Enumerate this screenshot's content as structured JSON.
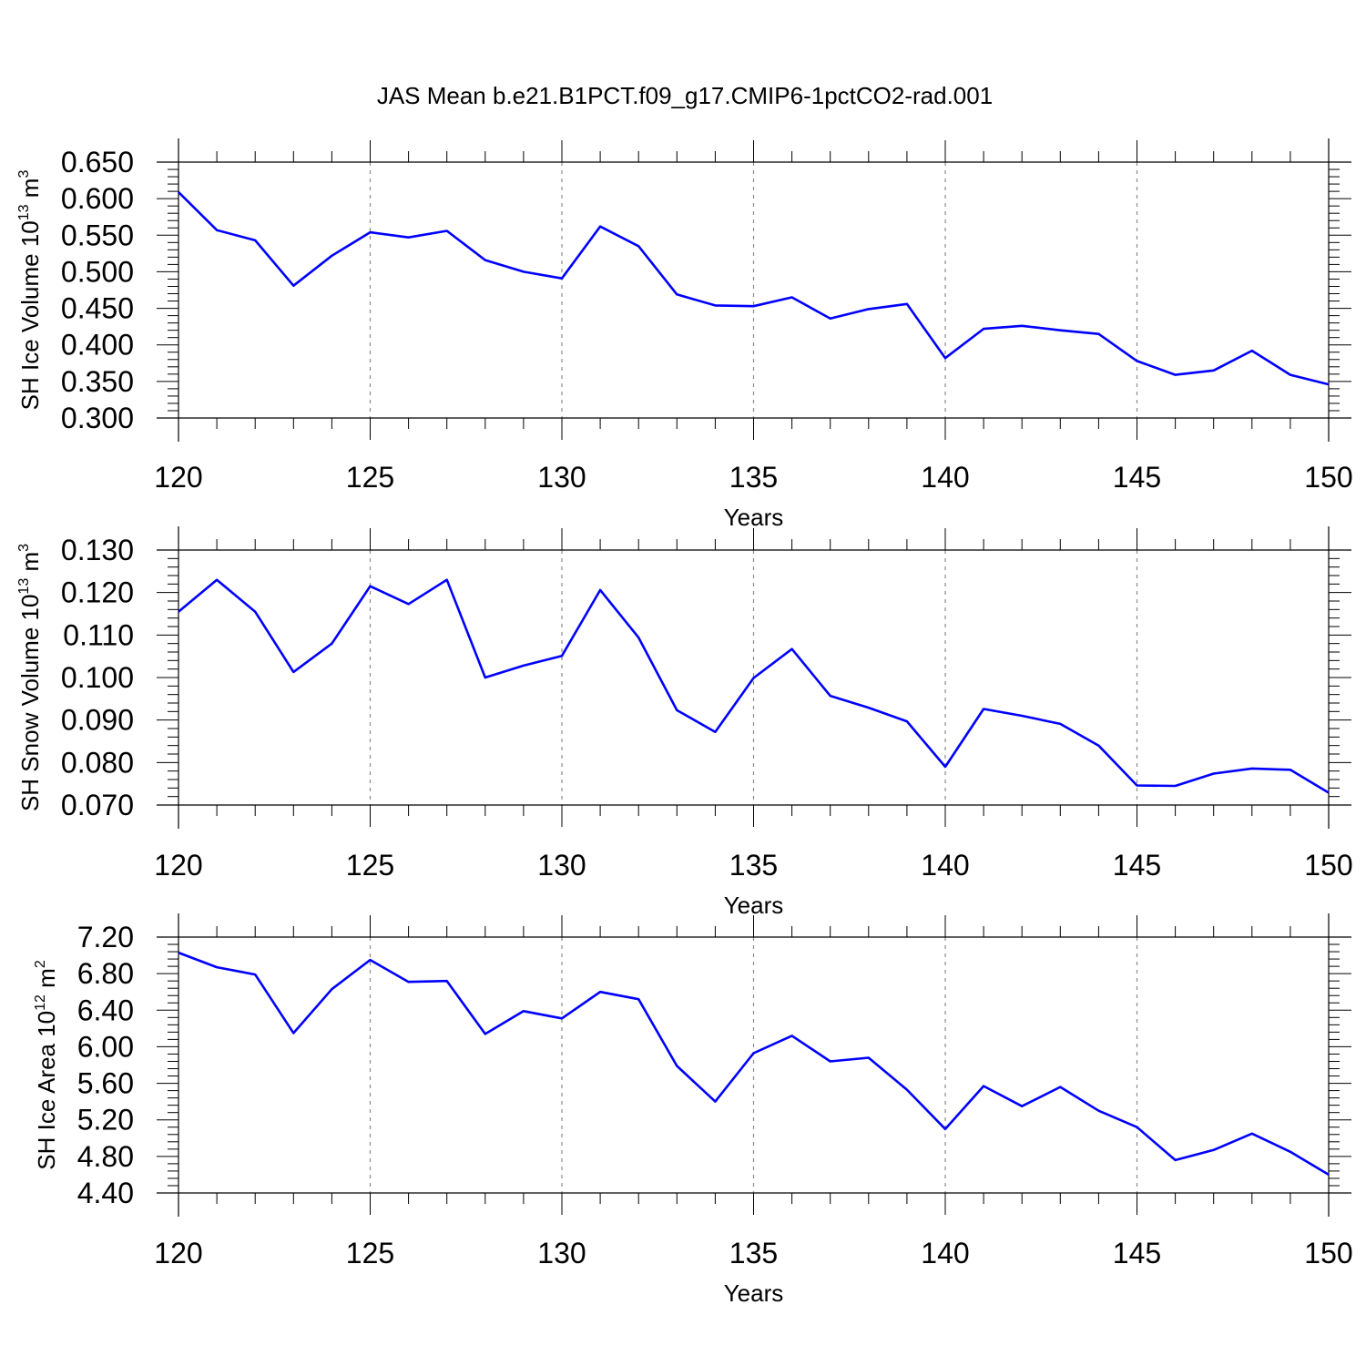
{
  "figure": {
    "title": "JAS Mean b.e21.B1PCT.f09_g17.CMIP6-1pctCO2-rad.001"
  },
  "chart_data": [
    {
      "type": "line",
      "xlabel": "Years",
      "ylabel": {
        "main": "SH Ice Volume 10",
        "exp": "13",
        "unit": " m",
        "unit_exp": "3"
      },
      "xlim": [
        120,
        150
      ],
      "ylim": [
        0.3,
        0.65
      ],
      "x_ticks": [
        "120",
        "125",
        "130",
        "135",
        "140",
        "145",
        "150"
      ],
      "y_ticks": [
        "0.300",
        "0.350",
        "0.400",
        "0.450",
        "0.500",
        "0.550",
        "0.600",
        "0.650"
      ],
      "grid": "vertical dashed at major x ticks",
      "line_color": "#0000ff",
      "series": [
        {
          "x": [
            120,
            121,
            122,
            123,
            124,
            125,
            126,
            127,
            128,
            129,
            130,
            131,
            132,
            133,
            134,
            135,
            136,
            137,
            138,
            139,
            140,
            141,
            142,
            143,
            144,
            145,
            146,
            147,
            148,
            149,
            150
          ],
          "values": [
            0.609,
            0.557,
            0.543,
            0.481,
            0.522,
            0.554,
            0.547,
            0.556,
            0.516,
            0.5,
            0.491,
            0.562,
            0.535,
            0.469,
            0.454,
            0.453,
            0.465,
            0.436,
            0.449,
            0.456,
            0.382,
            0.422,
            0.426,
            0.42,
            0.415,
            0.378,
            0.359,
            0.365,
            0.392,
            0.359,
            0.346
          ]
        }
      ]
    },
    {
      "type": "line",
      "xlabel": "Years",
      "ylabel": {
        "main": "SH Snow Volume 10",
        "exp": "13",
        "unit": " m",
        "unit_exp": "3"
      },
      "xlim": [
        120,
        150
      ],
      "ylim": [
        0.07,
        0.13
      ],
      "x_ticks": [
        "120",
        "125",
        "130",
        "135",
        "140",
        "145",
        "150"
      ],
      "y_ticks": [
        "0.070",
        "0.080",
        "0.090",
        "0.100",
        "0.110",
        "0.120",
        "0.130"
      ],
      "grid": "vertical dashed at major x ticks",
      "line_color": "#0000ff",
      "series": [
        {
          "x": [
            120,
            121,
            122,
            123,
            124,
            125,
            126,
            127,
            128,
            129,
            130,
            131,
            132,
            133,
            134,
            135,
            136,
            137,
            138,
            139,
            140,
            141,
            142,
            143,
            144,
            145,
            146,
            147,
            148,
            149,
            150
          ],
          "values": [
            0.1155,
            0.123,
            0.1155,
            0.1013,
            0.108,
            0.1215,
            0.1173,
            0.123,
            0.1,
            0.1028,
            0.1051,
            0.1206,
            0.1094,
            0.0923,
            0.0872,
            0.0999,
            0.1067,
            0.0957,
            0.0929,
            0.0897,
            0.079,
            0.0926,
            0.091,
            0.0891,
            0.084,
            0.0746,
            0.0745,
            0.0774,
            0.0786,
            0.0783,
            0.0729
          ]
        }
      ]
    },
    {
      "type": "line",
      "xlabel": "Years",
      "ylabel": {
        "main": "SH Ice Area 10",
        "exp": "12",
        "unit": " m",
        "unit_exp": "2"
      },
      "xlim": [
        120,
        150
      ],
      "ylim": [
        4.4,
        7.2
      ],
      "x_ticks": [
        "120",
        "125",
        "130",
        "135",
        "140",
        "145",
        "150"
      ],
      "y_ticks": [
        "4.40",
        "4.80",
        "5.20",
        "5.60",
        "6.00",
        "6.40",
        "6.80",
        "7.20"
      ],
      "grid": "vertical dashed at major x ticks",
      "line_color": "#0000ff",
      "series": [
        {
          "x": [
            120,
            121,
            122,
            123,
            124,
            125,
            126,
            127,
            128,
            129,
            130,
            131,
            132,
            133,
            134,
            135,
            136,
            137,
            138,
            139,
            140,
            141,
            142,
            143,
            144,
            145,
            146,
            147,
            148,
            149,
            150
          ],
          "values": [
            7.03,
            6.87,
            6.79,
            6.15,
            6.63,
            6.95,
            6.71,
            6.72,
            6.14,
            6.39,
            6.31,
            6.6,
            6.52,
            5.79,
            5.4,
            5.93,
            6.12,
            5.84,
            5.88,
            5.53,
            5.1,
            5.57,
            5.35,
            5.56,
            5.3,
            5.12,
            4.76,
            4.87,
            5.05,
            4.85,
            4.6
          ]
        }
      ]
    }
  ]
}
